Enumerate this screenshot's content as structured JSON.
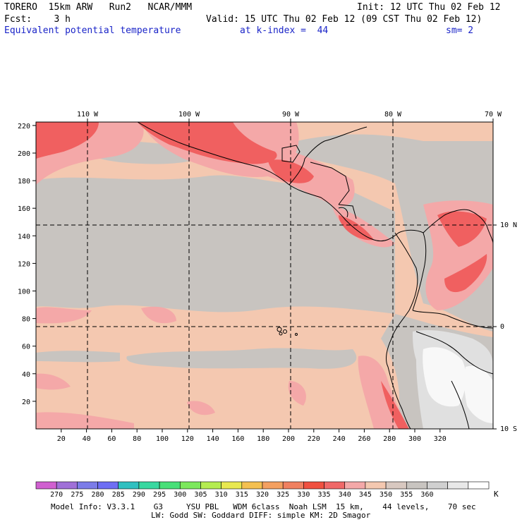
{
  "header": {
    "model": "TORERO  15km ARW   Run2   NCAR/MMM",
    "init": "Init: 12 UTC Thu 02 Feb 12",
    "fcst": "Fcst:    3 h",
    "valid": "Valid: 15 UTC Thu 02 Feb 12 (09 CST Thu 02 Feb 12)",
    "field": "Equivalent potential temperature",
    "level": "at k-index =  44",
    "smoothing": "sm= 2"
  },
  "map": {
    "lon_labels": [
      "110 W",
      "100 W",
      "90 W",
      "80 W",
      "70 W"
    ],
    "lat_labels": [
      "10 N",
      "0",
      "10 S"
    ],
    "x_ticks": [
      "20",
      "40",
      "60",
      "80",
      "100",
      "120",
      "140",
      "160",
      "180",
      "200",
      "220",
      "240",
      "260",
      "280",
      "300",
      "320"
    ],
    "y_ticks": [
      "220",
      "200",
      "180",
      "160",
      "140",
      "120",
      "100",
      "80",
      "60",
      "40",
      "20"
    ]
  },
  "colorbar": {
    "colors": [
      "#d060d0",
      "#a070d8",
      "#7c7ce8",
      "#6e6ef4",
      "#30c0c0",
      "#38d8a0",
      "#48e078",
      "#7ce85c",
      "#b4ec50",
      "#e8e850",
      "#f4c050",
      "#f4a060",
      "#f08060",
      "#f05040",
      "#f06868",
      "#f4a8a8",
      "#f4c8b0",
      "#d8c8c0",
      "#c8c4c0",
      "#d0d0d0",
      "#e8e8e8",
      "#ffffff"
    ],
    "labels": [
      "270",
      "275",
      "280",
      "285",
      "290",
      "295",
      "300",
      "305",
      "310",
      "315",
      "320",
      "325",
      "330",
      "335",
      "340",
      "345",
      "350",
      "355",
      "360"
    ],
    "unit": "K"
  },
  "footer": {
    "line1": "Model Info: V3.3.1    G3     YSU PBL   WDM 6class  Noah LSM  15 km,    44 levels,    70 sec",
    "line2": "LW: Godd SW: Goddard DIFF: simple KM: 2D Smagor"
  },
  "field_colors": {
    "background": "#f4c8b0",
    "gray": "#c8c4c0",
    "salmon": "#f4a8a8",
    "red": "#f06060",
    "light": "#e0e0e0",
    "white": "#f8f8f8"
  }
}
